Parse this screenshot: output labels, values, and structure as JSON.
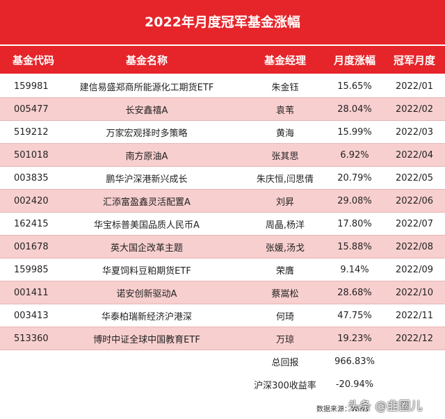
{
  "title": "2022年月度冠军基金涨幅",
  "header": [
    "基金代码",
    "基金名称",
    "基金经理",
    "月度涨幅",
    "冠军月度"
  ],
  "rows": [
    [
      "159981",
      "建信易盛郑商所能源化工期货ETF",
      "朱金钰",
      "15.65%",
      "2022/01"
    ],
    [
      "005477",
      "长安鑫禧A",
      "袁苇",
      "28.04%",
      "2022/02"
    ],
    [
      "519212",
      "万家宏观择时多策略",
      "黄海",
      "15.99%",
      "2022/03"
    ],
    [
      "501018",
      "南方原油A",
      "张其思",
      "6.92%",
      "2022/04"
    ],
    [
      "003835",
      "鹏华沪深港新兴成长",
      "朱庆恒,闫思倩",
      "20.79%",
      "2022/05"
    ],
    [
      "002420",
      "汇添富盈鑫灵活配置A",
      "刘昇",
      "29.08%",
      "2022/06"
    ],
    [
      "162415",
      "华宝标普美国品质人民币A",
      "周晶,杨洋",
      "17.80%",
      "2022/07"
    ],
    [
      "001678",
      "英大国企改革主题",
      "张媛,汤戈",
      "15.88%",
      "2022/08"
    ],
    [
      "159985",
      "华夏饲料豆粕期货ETF",
      "荣膺",
      "9.14%",
      "2022/09"
    ],
    [
      "001411",
      "诺安创新驱动A",
      "蔡嵩松",
      "28.68%",
      "2022/10"
    ],
    [
      "003413",
      "华泰柏瑞新经济沪港深",
      "何琦",
      "47.75%",
      "2022/11"
    ],
    [
      "513360",
      "博时中证全球中国教育ETF",
      "万琼",
      "19.23%",
      "2022/12"
    ]
  ],
  "summary": [
    {
      "label": "总回报",
      "value": "966.83%"
    },
    {
      "label": "沪深300收益率",
      "value": "-20.94%"
    }
  ],
  "footer": {
    "source": "数据来源：Wind",
    "watermark": "头条 @韭圈儿"
  }
}
